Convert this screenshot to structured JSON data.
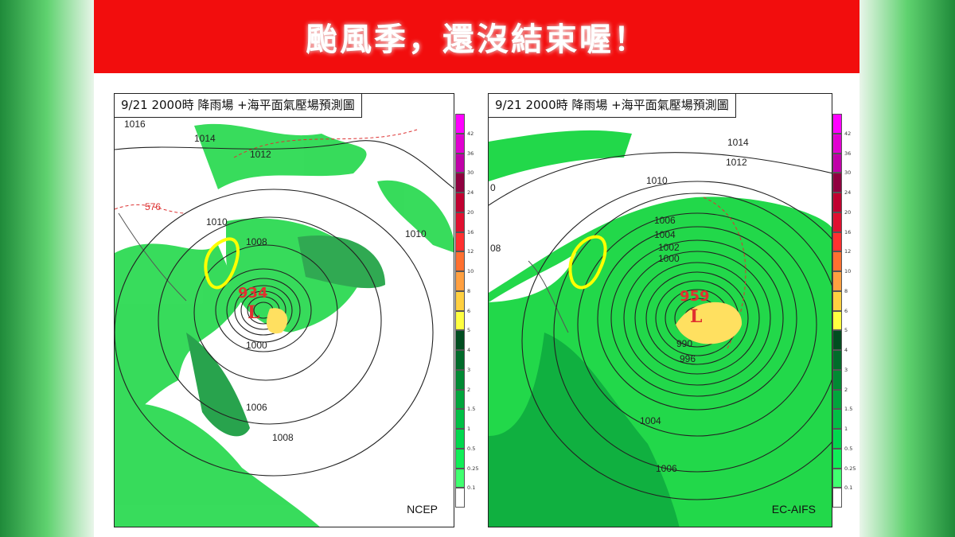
{
  "banner": {
    "title": "颱風季，還沒結束喔！",
    "color": "#f20d0d"
  },
  "panels": [
    {
      "title": "9/21 2000時  降雨場 +海平面氣壓場預測圖",
      "model": "NCEP",
      "center_pressure": "934",
      "low_symbol": "L",
      "contour_labels": [
        "1016",
        "1014",
        "1012",
        "576",
        "1010",
        "1008",
        "1010",
        "1000",
        "1006",
        "1008"
      ]
    },
    {
      "title": "9/21 2000時  降雨場 +海平面氣壓場預測圖",
      "model": "EC-AIFS",
      "center_pressure": "959",
      "low_symbol": "L",
      "contour_labels": [
        "1014",
        "1012",
        "1010",
        "1006",
        "1004",
        "1002",
        "1000",
        "990",
        "996",
        "1004",
        "1006",
        "08",
        "0"
      ]
    }
  ],
  "colorbar": {
    "labels": [
      "42",
      "36",
      "30",
      "24",
      "20",
      "16",
      "12",
      "10",
      "8",
      "6",
      "5",
      "4",
      "3",
      "2",
      "1.5",
      "1",
      "0.5",
      "0.25",
      "0.1"
    ],
    "colors": [
      "#ff00ff",
      "#e000d0",
      "#c000a8",
      "#900040",
      "#c00030",
      "#e01030",
      "#ff3030",
      "#ff7030",
      "#ffa040",
      "#ffd040",
      "#ffff40",
      "#004d20",
      "#006b2a",
      "#008a33",
      "#00a63c",
      "#00c045",
      "#00d84e",
      "#10ee58",
      "#40ff70",
      "#ffffff"
    ],
    "highlight_color": "#ffff00"
  }
}
